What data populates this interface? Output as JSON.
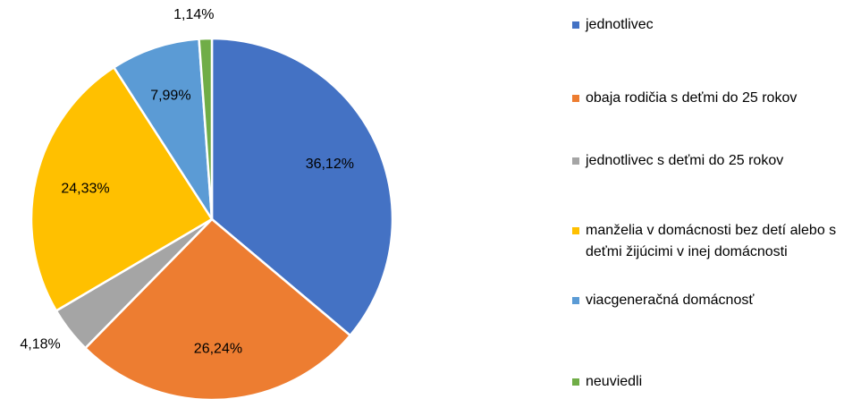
{
  "chart_data": {
    "type": "pie",
    "categories": [
      "jednotlivec",
      "obaja rodičia s deťmi do 25 rokov",
      "jednotlivec s deťmi do 25 rokov",
      "manželia v domácnosti bez detí alebo s deťmi žijúcimi v inej domácnosti",
      "viacgeneračná domácnosť",
      "neuviedli"
    ],
    "values": [
      36.12,
      26.24,
      4.18,
      24.33,
      7.99,
      1.14
    ],
    "value_labels": [
      "36,12%",
      "26,24%",
      "4,18%",
      "24,33%",
      "7,99%",
      "1,14%"
    ],
    "colors": [
      "#4472c4",
      "#ed7d31",
      "#a5a5a5",
      "#ffc000",
      "#5b9bd5",
      "#70ad47"
    ],
    "legend": "right"
  }
}
